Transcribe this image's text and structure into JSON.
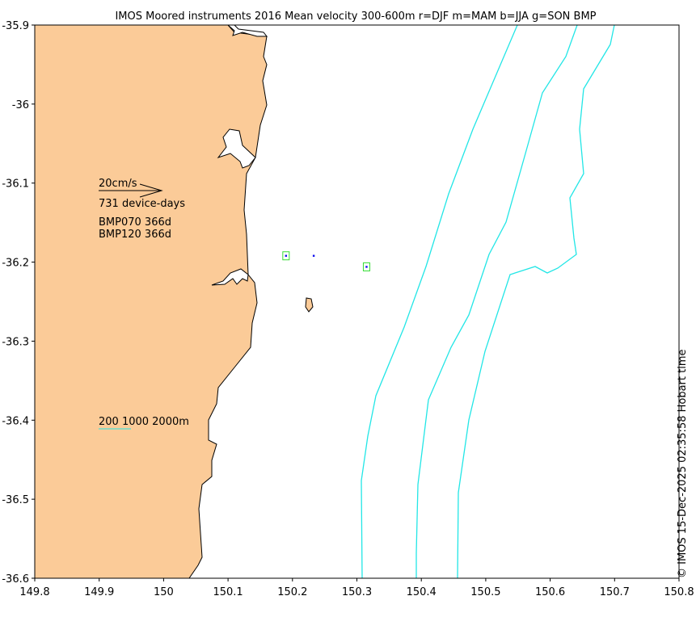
{
  "title": "IMOS Moored instruments 2016 Mean velocity 300-600m r=DJF m=MAM b=JJA g=SON BMP",
  "credit": "© IMOS 15-Dec-2025 02:35:58 Hobart time",
  "colors": {
    "land": "#fbcb98",
    "isobath": "#22e6e6",
    "marker_box": "#33dd33",
    "marker_dot": "#1010ee",
    "coast": "#000000"
  },
  "axes": {
    "x_ticks": [
      "149.8",
      "149.9",
      "150",
      "150.1",
      "150.2",
      "150.3",
      "150.4",
      "150.5",
      "150.6",
      "150.7",
      "150.8"
    ],
    "y_ticks": [
      "-35.9",
      "-36",
      "-36.1",
      "-36.2",
      "-36.3",
      "-36.4",
      "-36.5",
      "-36.6"
    ],
    "xlim": [
      149.8,
      150.8
    ],
    "ylim": [
      -36.6,
      -35.9
    ]
  },
  "legend": {
    "scale_label": "20cm/s",
    "device_days": "731 device-days",
    "stations": [
      "BMP070 366d",
      "BMP120 366d"
    ],
    "isobath_label": "200 1000 2000m"
  },
  "stations": [
    {
      "lon": 150.19,
      "lat": -36.192,
      "boxed": true
    },
    {
      "lon": 150.233,
      "lat": -36.192,
      "boxed": false
    },
    {
      "lon": 150.315,
      "lat": -36.206,
      "boxed": true
    }
  ]
}
